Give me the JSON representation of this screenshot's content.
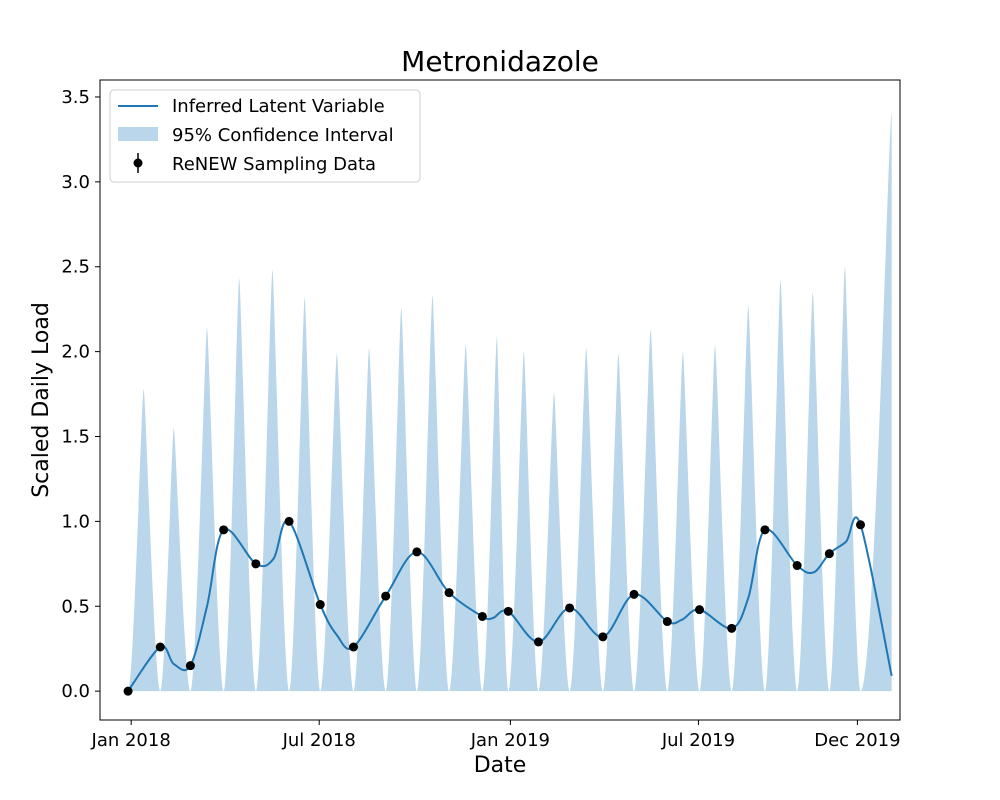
{
  "chart_data": {
    "type": "line",
    "title": "Metronidazole",
    "xlabel": "Date",
    "ylabel": "Scaled Daily Load",
    "xlim": [
      "2017-12-02",
      "2020-01-11"
    ],
    "ylim": [
      -0.17,
      3.6
    ],
    "x_ticks": [
      {
        "date": "2018-01-01",
        "label": "Jan 2018"
      },
      {
        "date": "2018-07-01",
        "label": "Jul 2018"
      },
      {
        "date": "2019-01-01",
        "label": "Jan 2019"
      },
      {
        "date": "2019-07-01",
        "label": "Jul 2019"
      },
      {
        "date": "2019-12-01",
        "label": "Dec 2019"
      }
    ],
    "y_ticks": [
      {
        "value": 0.0,
        "label": "0.0"
      },
      {
        "value": 0.5,
        "label": "0.5"
      },
      {
        "value": 1.0,
        "label": "1.0"
      },
      {
        "value": 1.5,
        "label": "1.5"
      },
      {
        "value": 2.0,
        "label": "2.0"
      },
      {
        "value": 2.5,
        "label": "2.5"
      },
      {
        "value": 3.0,
        "label": "3.0"
      },
      {
        "value": 3.5,
        "label": "3.5"
      }
    ],
    "legend": {
      "position": "upper-left",
      "entries": [
        "Inferred Latent Variable",
        "95% Confidence Interval",
        "ReNEW Sampling Data"
      ]
    },
    "colors": {
      "line": "#1f77b4",
      "interval": "#bad6ea",
      "points": "#000000"
    },
    "series": [
      {
        "name": "ReNEW Sampling Data",
        "kind": "points",
        "points": [
          {
            "x": "2017-12-29",
            "y": 0.0
          },
          {
            "x": "2018-01-29",
            "y": 0.26
          },
          {
            "x": "2018-02-27",
            "y": 0.15
          },
          {
            "x": "2018-03-31",
            "y": 0.95
          },
          {
            "x": "2018-05-01",
            "y": 0.75
          },
          {
            "x": "2018-06-02",
            "y": 1.0
          },
          {
            "x": "2018-07-02",
            "y": 0.51
          },
          {
            "x": "2018-08-03",
            "y": 0.26
          },
          {
            "x": "2018-09-03",
            "y": 0.56
          },
          {
            "x": "2018-10-03",
            "y": 0.82
          },
          {
            "x": "2018-11-03",
            "y": 0.58
          },
          {
            "x": "2018-12-05",
            "y": 0.44
          },
          {
            "x": "2018-12-30",
            "y": 0.47
          },
          {
            "x": "2019-01-28",
            "y": 0.29
          },
          {
            "x": "2019-02-27",
            "y": 0.49
          },
          {
            "x": "2019-03-31",
            "y": 0.32
          },
          {
            "x": "2019-04-30",
            "y": 0.57
          },
          {
            "x": "2019-06-01",
            "y": 0.41
          },
          {
            "x": "2019-07-02",
            "y": 0.48
          },
          {
            "x": "2019-08-02",
            "y": 0.37
          },
          {
            "x": "2019-09-03",
            "y": 0.95
          },
          {
            "x": "2019-10-04",
            "y": 0.74
          },
          {
            "x": "2019-11-04",
            "y": 0.81
          },
          {
            "x": "2019-12-04",
            "y": 0.98
          }
        ]
      },
      {
        "name": "Inferred Latent Variable",
        "kind": "line",
        "extension": {
          "x": "2020-01-03",
          "y": 0.09
        },
        "valleys": [
          {
            "x": "2018-02-11",
            "y": 0.16
          },
          {
            "x": "2018-03-15",
            "y": 0.5
          },
          {
            "x": "2018-05-18",
            "y": 0.78
          },
          {
            "x": "2018-07-18",
            "y": 0.33
          },
          {
            "x": "2018-12-15",
            "y": 0.43
          },
          {
            "x": "2019-06-15",
            "y": 0.42
          },
          {
            "x": "2019-08-18",
            "y": 0.55
          },
          {
            "x": "2019-10-20",
            "y": 0.7
          },
          {
            "x": "2019-11-20",
            "y": 0.88
          }
        ]
      },
      {
        "name": "95% Confidence Interval",
        "kind": "band",
        "lower": 0.0,
        "upper_peaks": [
          {
            "x": "2018-01-13",
            "y": 1.78
          },
          {
            "x": "2018-02-11",
            "y": 1.55
          },
          {
            "x": "2018-03-15",
            "y": 2.14
          },
          {
            "x": "2018-04-15",
            "y": 2.43
          },
          {
            "x": "2018-05-17",
            "y": 2.48
          },
          {
            "x": "2018-06-17",
            "y": 2.32
          },
          {
            "x": "2018-07-18",
            "y": 1.99
          },
          {
            "x": "2018-08-18",
            "y": 2.02
          },
          {
            "x": "2018-09-18",
            "y": 2.26
          },
          {
            "x": "2018-10-18",
            "y": 2.33
          },
          {
            "x": "2018-11-19",
            "y": 2.04
          },
          {
            "x": "2018-12-19",
            "y": 2.09
          },
          {
            "x": "2019-01-14",
            "y": 2.0
          },
          {
            "x": "2019-02-12",
            "y": 1.76
          },
          {
            "x": "2019-03-15",
            "y": 2.02
          },
          {
            "x": "2019-04-15",
            "y": 1.99
          },
          {
            "x": "2019-05-16",
            "y": 2.13
          },
          {
            "x": "2019-06-16",
            "y": 2.0
          },
          {
            "x": "2019-07-17",
            "y": 2.04
          },
          {
            "x": "2019-08-18",
            "y": 2.27
          },
          {
            "x": "2019-09-18",
            "y": 2.42
          },
          {
            "x": "2019-10-19",
            "y": 2.35
          },
          {
            "x": "2019-11-19",
            "y": 2.5
          },
          {
            "x": "2020-01-03",
            "y": 3.41
          }
        ]
      }
    ]
  }
}
